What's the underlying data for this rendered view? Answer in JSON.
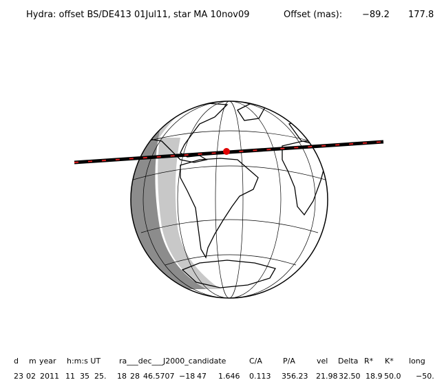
{
  "header": {
    "title": "Hydra: offset BS/DE413 01Jul11, star MA 10nov09",
    "offset_label": "Offset (mas):",
    "offset_x": "−89.2",
    "offset_y": "177.8"
  },
  "table": {
    "columns": [
      "d",
      "m",
      "year",
      "h:m:s UT",
      "ra___dec___J2000_candidate",
      "C/A",
      "P/A",
      "vel",
      "Delta",
      "R*",
      "K*",
      "long"
    ],
    "row": [
      "23",
      "02",
      "2011",
      "11",
      "35",
      "25.",
      "18",
      "28",
      "46.5707",
      "−18",
      "47",
      "1.646",
      "0.113",
      "356.23",
      "21.98",
      "32.50",
      "18.9",
      "50.0",
      "−50."
    ]
  }
}
